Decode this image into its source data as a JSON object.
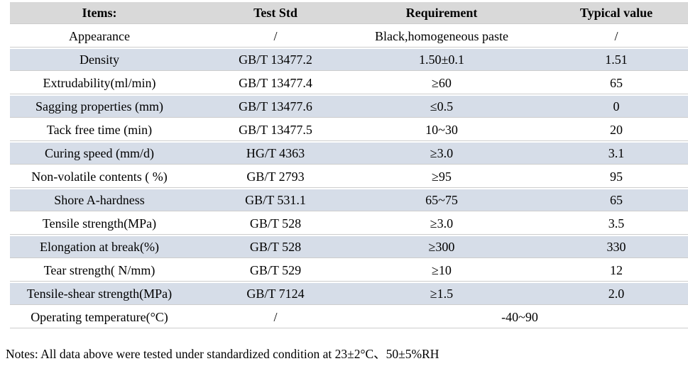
{
  "table": {
    "headers": {
      "items": "Items:",
      "test_std": "Test Std",
      "requirement": "Requirement",
      "typical_value": "Typical value"
    },
    "rows": [
      {
        "item": "Appearance",
        "std": "/",
        "req": "Black,homogeneous paste",
        "typ": "/"
      },
      {
        "item": "Density",
        "std": "GB/T 13477.2",
        "req": "1.50±0.1",
        "typ": "1.51"
      },
      {
        "item": "Extrudability(ml/min)",
        "std": "GB/T 13477.4",
        "req": "≥60",
        "typ": "65"
      },
      {
        "item": "Sagging properties (mm)",
        "std": "GB/T 13477.6",
        "req": "≤0.5",
        "typ": "0"
      },
      {
        "item": "Tack free time (min)",
        "std": "GB/T 13477.5",
        "req": "10~30",
        "typ": "20"
      },
      {
        "item": "Curing speed (mm/d)",
        "std": "HG/T 4363",
        "req": "≥3.0",
        "typ": "3.1"
      },
      {
        "item": "Non-volatile contents ( %)",
        "std": "GB/T 2793",
        "req": "≥95",
        "typ": "95"
      },
      {
        "item": "Shore A-hardness",
        "std": "GB/T 531.1",
        "req": "65~75",
        "typ": "65"
      },
      {
        "item": "Tensile strength(MPa)",
        "std": "GB/T 528",
        "req": "≥3.0",
        "typ": "3.5"
      },
      {
        "item": "Elongation at break(%)",
        "std": "GB/T 528",
        "req": "≥300",
        "typ": "330"
      },
      {
        "item": "Tear strength( N/mm)",
        "std": "GB/T 529",
        "req": "≥10",
        "typ": "12"
      },
      {
        "item": "Tensile-shear strength(MPa)",
        "std": "GB/T 7124",
        "req": "≥1.5",
        "typ": "2.0"
      }
    ],
    "footer_row": {
      "item": "Operating temperature(°C)",
      "std": "/",
      "range": "-40~90"
    }
  },
  "notes": "Notes: All data above were tested under standardized condition at 23±2°C、50±5%RH",
  "colors": {
    "header_bg": "#d9d9d9",
    "alt_row_bg": "#d6dde8",
    "row_bg": "#ffffff",
    "text": "#000000"
  }
}
